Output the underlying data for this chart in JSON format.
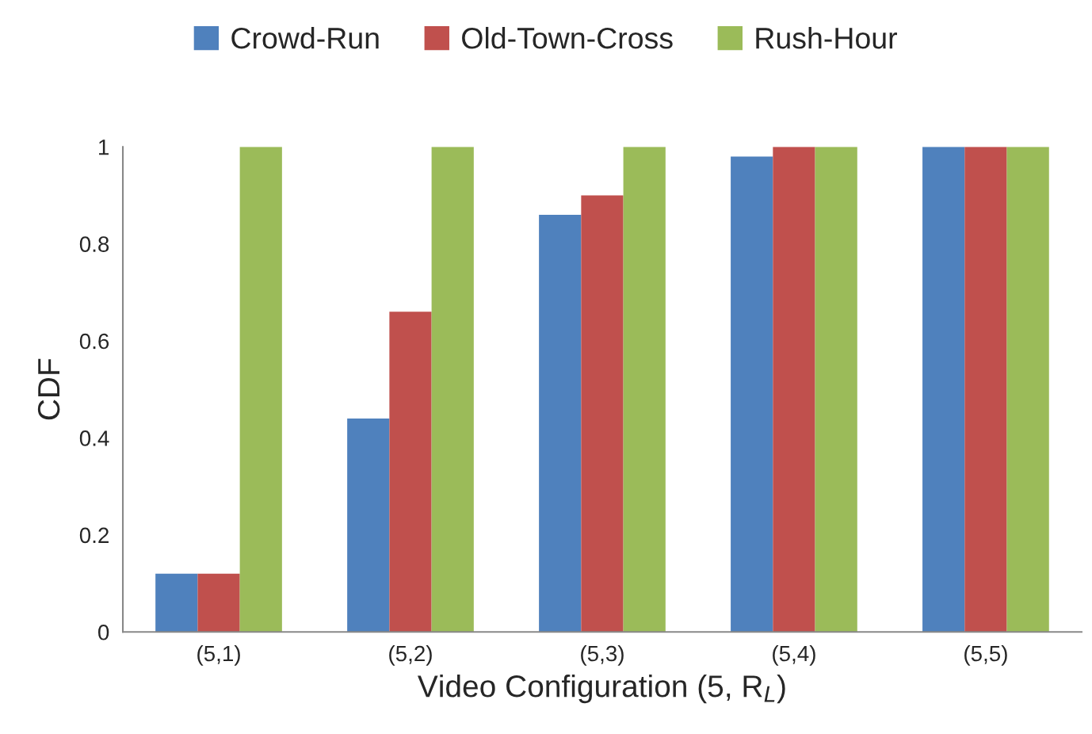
{
  "chart_data": {
    "type": "bar",
    "xlabel": "Video Configuration (5, R$_{L}$)",
    "ylabel": "CDF",
    "categories": [
      "(5,1)",
      "(5,2)",
      "(5,3)",
      "(5,4)",
      "(5,5)"
    ],
    "series": [
      {
        "name": "Crowd-Run",
        "color": "#4f81bd",
        "values": [
          0.12,
          0.44,
          0.86,
          0.98,
          1
        ]
      },
      {
        "name": "Old-Town-Cross",
        "color": "#c0504d",
        "values": [
          0.12,
          0.66,
          0.9,
          1,
          1
        ]
      },
      {
        "name": "Rush-Hour",
        "color": "#9bbb59",
        "values": [
          1,
          1,
          1,
          1,
          1
        ]
      }
    ],
    "ylim": [
      0,
      1
    ],
    "yticks": [
      0,
      0.2,
      0.4,
      0.6,
      0.8,
      1
    ],
    "grid": false,
    "legend": "top"
  }
}
